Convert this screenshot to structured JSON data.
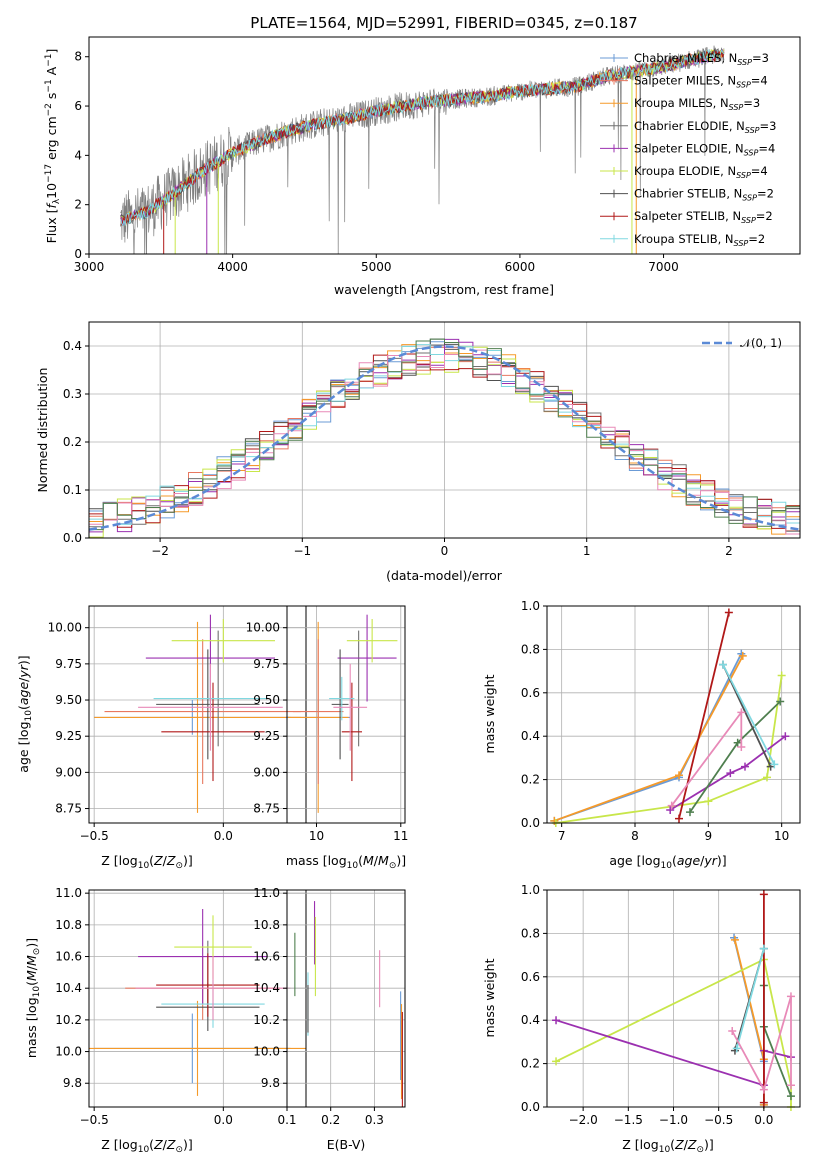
{
  "colors": {
    "Chabrier MILES": "#6b9bd6",
    "Salpeter MILES": "#e87860",
    "Kroupa MILES": "#f59a2a",
    "Chabrier ELODIE": "#707070",
    "Salpeter ELODIE": "#9b30b0",
    "Kroupa ELODIE": "#c8e64a",
    "Chabrier STELIB": "#505050",
    "Salpeter STELIB": "#b01818",
    "Kroupa STELIB": "#80d8e0",
    "normal": "#5b8ad6",
    "pink": "#e88ab8",
    "green": "#4f7f4f"
  },
  "chart_data": [
    {
      "id": "spectrum",
      "type": "line",
      "title": "PLATE=1564, MJD=52991, FIBERID=0345, z=0.187",
      "xlabel": "wavelength [Angstrom, rest frame]",
      "ylabel": "Flux [f_λ10^-17 erg cm^-2 s^-1 A^-1]",
      "xlim": [
        3000,
        7950
      ],
      "ylim": [
        0,
        8.8
      ],
      "xticks": [
        3000,
        4000,
        5000,
        6000,
        7000
      ],
      "yticks": [
        0,
        2,
        4,
        6,
        8
      ],
      "grid": false,
      "legend_position": "top-right",
      "continuum": {
        "x": [
          3200,
          3400,
          3600,
          3800,
          4000,
          4200,
          4400,
          4600,
          4800,
          5000,
          5200,
          5400,
          5600,
          5800,
          6000,
          6200,
          6400,
          6600,
          6800,
          7000,
          7200,
          7400
        ],
        "y": [
          1.3,
          1.7,
          2.5,
          3.4,
          4.1,
          4.6,
          5.0,
          5.3,
          5.5,
          5.8,
          6.0,
          6.2,
          6.3,
          6.4,
          6.6,
          6.7,
          6.8,
          7.2,
          7.4,
          7.6,
          7.9,
          8.1
        ]
      },
      "series": [
        {
          "name": "Chabrier MILES",
          "nssp": "3"
        },
        {
          "name": "Salpeter MILES",
          "nssp": "4"
        },
        {
          "name": "Kroupa MILES",
          "nssp": "3"
        },
        {
          "name": "Chabrier ELODIE",
          "nssp": "3"
        },
        {
          "name": "Salpeter ELODIE",
          "nssp": "4"
        },
        {
          "name": "Kroupa ELODIE",
          "nssp": "4"
        },
        {
          "name": "Chabrier STELIB",
          "nssp": "2"
        },
        {
          "name": "Salpeter STELIB",
          "nssp": "2"
        },
        {
          "name": "Kroupa STELIB",
          "nssp": "2"
        }
      ]
    },
    {
      "id": "residuals",
      "type": "histogram",
      "xlabel": "(data-model)/error",
      "ylabel": "Normed distribution",
      "xlim": [
        -2.5,
        2.5
      ],
      "ylim": [
        0,
        0.45
      ],
      "xticks": [
        -2,
        -1,
        0,
        1,
        2
      ],
      "yticks": [
        0.0,
        0.1,
        0.2,
        0.3,
        0.4
      ],
      "grid": true,
      "legend_position": "top-right",
      "legend": "𝒩(0, 1)",
      "bin_width": 0.1,
      "bin_start": -2.5
    },
    {
      "id": "age_vs_Z",
      "type": "errorbar",
      "xlabel": "Z [log10(Z/Z⊙)]",
      "ylabel": "age  [log10(age/yr)]",
      "xlim": [
        -0.52,
        0.32
      ],
      "ylim": [
        8.65,
        10.15
      ],
      "xticks": [
        -0.5,
        0.0
      ],
      "yticks": [
        8.75,
        9.0,
        9.25,
        9.5,
        9.75,
        10.0
      ],
      "grid": true,
      "points": [
        {
          "series": "Chabrier MILES",
          "x": -0.12,
          "xerr": 0.38,
          "y": 9.38,
          "yerr": 0.12
        },
        {
          "series": "Kroupa MILES",
          "x": -0.1,
          "xerr": 0.4,
          "y": 9.38,
          "yerr": 0.66
        },
        {
          "series": "Salpeter MILES",
          "x": -0.08,
          "xerr": 0.38,
          "y": 9.42,
          "yerr": 0.5
        },
        {
          "series": "Chabrier ELODIE",
          "x": -0.02,
          "xerr": 0.0,
          "y": 9.58,
          "yerr": 0.4
        },
        {
          "series": "Salpeter ELODIE",
          "x": -0.05,
          "xerr": 0.25,
          "y": 9.79,
          "yerr": 0.3
        },
        {
          "series": "Kroupa ELODIE",
          "x": 0.0,
          "xerr": 0.2,
          "y": 9.91,
          "yerr": 0.15
        },
        {
          "series": "Chabrier STELIB",
          "x": -0.06,
          "xerr": 0.2,
          "y": 9.47,
          "yerr": 0.38
        },
        {
          "series": "Salpeter STELIB",
          "x": -0.04,
          "xerr": 0.2,
          "y": 9.28,
          "yerr": 0.34
        },
        {
          "series": "Kroupa STELIB",
          "x": -0.05,
          "xerr": 0.22,
          "y": 9.51,
          "yerr": 0.15
        },
        {
          "series": "pink",
          "x": -0.05,
          "xerr": 0.28,
          "y": 9.45,
          "yerr": 0.3
        }
      ]
    },
    {
      "id": "age_vs_mass",
      "type": "errorbar",
      "xlabel": "mass [log10(M/M⊙)]",
      "ylabel": "",
      "xlim": [
        9.65,
        11.05
      ],
      "ylim": [
        8.65,
        10.15
      ],
      "xticks": [
        10,
        11
      ],
      "yticks": [
        8.75,
        9.0,
        9.25,
        9.5,
        9.75,
        10.0
      ],
      "grid": true,
      "points": [
        {
          "series": "Chabrier MILES",
          "x": 10.02,
          "xerr": 0.38,
          "y": 9.38,
          "yerr": 0.12
        },
        {
          "series": "Kroupa MILES",
          "x": 10.02,
          "xerr": 0.36,
          "y": 9.38,
          "yerr": 0.66
        },
        {
          "series": "Salpeter MILES",
          "x": 10.02,
          "xerr": 0.3,
          "y": 9.42,
          "yerr": 0.5
        },
        {
          "series": "Chabrier ELODIE",
          "x": 10.5,
          "xerr": 0.0,
          "y": 9.58,
          "yerr": 0.4
        },
        {
          "series": "Salpeter ELODIE",
          "x": 10.6,
          "xerr": 0.35,
          "y": 9.79,
          "yerr": 0.3
        },
        {
          "series": "Kroupa ELODIE",
          "x": 10.66,
          "xerr": 0.3,
          "y": 9.91,
          "yerr": 0.15
        },
        {
          "series": "Chabrier STELIB",
          "x": 10.28,
          "xerr": 0.1,
          "y": 9.47,
          "yerr": 0.38
        },
        {
          "series": "Salpeter STELIB",
          "x": 10.42,
          "xerr": 0.12,
          "y": 9.28,
          "yerr": 0.34
        },
        {
          "series": "Kroupa STELIB",
          "x": 10.3,
          "xerr": 0.15,
          "y": 9.51,
          "yerr": 0.15
        },
        {
          "series": "pink",
          "x": 10.4,
          "xerr": 0.2,
          "y": 9.45,
          "yerr": 0.3
        }
      ]
    },
    {
      "id": "weight_vs_age",
      "type": "line",
      "xlabel": "age  [log10(age/yr)]",
      "ylabel": "mass weight",
      "xlim": [
        6.8,
        10.25
      ],
      "ylim": [
        0,
        1.0
      ],
      "xticks": [
        7,
        8,
        9,
        10
      ],
      "yticks": [
        0.0,
        0.2,
        0.4,
        0.6,
        0.8,
        1.0
      ],
      "grid": true,
      "series": [
        {
          "series": "Chabrier MILES",
          "x": [
            6.9,
            8.6,
            9.45
          ],
          "y": [
            0.01,
            0.21,
            0.78
          ]
        },
        {
          "series": "Kroupa MILES",
          "x": [
            6.9,
            8.6,
            9.47
          ],
          "y": [
            0.01,
            0.22,
            0.77
          ]
        },
        {
          "series": "Kroupa ELODIE",
          "x": [
            6.92,
            9.0,
            9.8,
            10.0
          ],
          "y": [
            0.0,
            0.1,
            0.21,
            0.68
          ]
        },
        {
          "series": "Salpeter ELODIE",
          "x": [
            8.48,
            9.3,
            9.5,
            10.05
          ],
          "y": [
            0.06,
            0.23,
            0.26,
            0.4
          ]
        },
        {
          "series": "green",
          "x": [
            8.75,
            9.4,
            9.98
          ],
          "y": [
            0.05,
            0.37,
            0.56
          ]
        },
        {
          "series": "Salpeter STELIB",
          "x": [
            8.6,
            9.28
          ],
          "y": [
            0.02,
            0.97
          ]
        },
        {
          "series": "Chabrier STELIB",
          "x": [
            9.2,
            9.85
          ],
          "y": [
            0.73,
            0.26
          ]
        },
        {
          "series": "Kroupa STELIB",
          "x": [
            9.2,
            9.9
          ],
          "y": [
            0.73,
            0.27
          ]
        },
        {
          "series": "pink",
          "x": [
            8.5,
            9.45,
            9.45
          ],
          "y": [
            0.08,
            0.51,
            0.35
          ]
        }
      ]
    },
    {
      "id": "mass_vs_Z",
      "type": "errorbar",
      "xlabel": "Z [log10(Z/Z⊙)]",
      "ylabel": "mass [log10(M/M⊙)]",
      "xlim": [
        -0.52,
        0.32
      ],
      "ylim": [
        9.65,
        11.02
      ],
      "xticks": [
        -0.5,
        0.0
      ],
      "yticks": [
        9.8,
        10.0,
        10.2,
        10.4,
        10.6,
        10.8,
        11.0
      ],
      "grid": true,
      "points": [
        {
          "series": "Chabrier MILES",
          "x": -0.12,
          "xerr": 0.38,
          "y": 10.02,
          "yerr": 0.22
        },
        {
          "series": "Kroupa MILES",
          "x": -0.1,
          "xerr": 0.42,
          "y": 10.02,
          "yerr": 0.3
        },
        {
          "series": "Salpeter MILES",
          "x": -0.08,
          "xerr": 0.3,
          "y": 10.4,
          "yerr": 0.2
        },
        {
          "series": "Chabrier ELODIE",
          "x": -0.06,
          "xerr": 0.0,
          "y": 10.5,
          "yerr": 0.2
        },
        {
          "series": "Salpeter ELODIE",
          "x": -0.08,
          "xerr": 0.25,
          "y": 10.6,
          "yerr": 0.3
        },
        {
          "series": "Kroupa ELODIE",
          "x": -0.04,
          "xerr": 0.15,
          "y": 10.66,
          "yerr": 0.2
        },
        {
          "series": "Chabrier STELIB",
          "x": -0.06,
          "xerr": 0.2,
          "y": 10.28,
          "yerr": 0.15
        },
        {
          "series": "Salpeter STELIB",
          "x": -0.06,
          "xerr": 0.2,
          "y": 10.42,
          "yerr": 0.2
        },
        {
          "series": "Kroupa STELIB",
          "x": -0.04,
          "xerr": 0.2,
          "y": 10.3,
          "yerr": 0.15
        },
        {
          "series": "pink",
          "x": -0.04,
          "xerr": 0.3,
          "y": 10.4,
          "yerr": 0.2
        }
      ]
    },
    {
      "id": "mass_vs_EBV",
      "type": "errorbar",
      "xlabel": "E(B-V)",
      "ylabel": "",
      "xlim": [
        0.1,
        0.37
      ],
      "ylim": [
        9.65,
        11.02
      ],
      "xticks": [
        0.1,
        0.2,
        0.3
      ],
      "yticks": [
        9.8,
        10.0,
        10.2,
        10.4,
        10.6,
        10.8,
        11.0
      ],
      "grid": true,
      "points": [
        {
          "series": "green",
          "x": 0.118,
          "xerr": 0.0,
          "y": 10.55,
          "yerr": 0.2
        },
        {
          "series": "Kroupa STELIB",
          "x": 0.148,
          "xerr": 0.0,
          "y": 10.3,
          "yerr": 0.2
        },
        {
          "series": "Chabrier STELIB",
          "x": 0.148,
          "xerr": 0.0,
          "y": 10.27,
          "yerr": 0.15
        },
        {
          "series": "Salpeter ELODIE",
          "x": 0.163,
          "xerr": 0.0,
          "y": 10.75,
          "yerr": 0.2
        },
        {
          "series": "Kroupa ELODIE",
          "x": 0.165,
          "xerr": 0.0,
          "y": 10.6,
          "yerr": 0.25
        },
        {
          "series": "pink",
          "x": 0.312,
          "xerr": 0.0,
          "y": 10.46,
          "yerr": 0.18
        },
        {
          "series": "Chabrier MILES",
          "x": 0.36,
          "xerr": 0.0,
          "y": 10.1,
          "yerr": 0.28
        },
        {
          "series": "Kroupa MILES",
          "x": 0.362,
          "xerr": 0.0,
          "y": 10.0,
          "yerr": 0.3
        },
        {
          "series": "Salpeter STELIB",
          "x": 0.364,
          "xerr": 0.0,
          "y": 9.95,
          "yerr": 0.3
        }
      ]
    },
    {
      "id": "weight_vs_Z",
      "type": "line",
      "xlabel": "Z [log10(Z/Z⊙)]",
      "ylabel": "mass weight",
      "xlim": [
        -2.4,
        0.4
      ],
      "ylim": [
        0,
        1.0
      ],
      "xticks": [
        -2.0,
        -1.5,
        -1.0,
        -0.5,
        0.0
      ],
      "yticks": [
        0.0,
        0.2,
        0.4,
        0.6,
        0.8,
        1.0
      ],
      "grid": true,
      "series": [
        {
          "series": "Chabrier MILES",
          "x": [
            -0.33,
            0.0,
            0.0
          ],
          "y": [
            0.78,
            0.21,
            0.01
          ]
        },
        {
          "series": "Kroupa MILES",
          "x": [
            -0.32,
            0.0,
            0.0
          ],
          "y": [
            0.77,
            0.22,
            0.01
          ]
        },
        {
          "series": "Kroupa ELODIE",
          "x": [
            -2.3,
            0.0,
            0.3,
            0.3
          ],
          "y": [
            0.21,
            0.68,
            0.1,
            0.0
          ]
        },
        {
          "series": "Salpeter ELODIE",
          "x": [
            -2.3,
            0.0,
            0.0,
            0.3
          ],
          "y": [
            0.4,
            0.1,
            0.26,
            0.23
          ]
        },
        {
          "series": "green",
          "x": [
            0.0,
            0.0,
            0.3
          ],
          "y": [
            0.56,
            0.37,
            0.05
          ]
        },
        {
          "series": "Salpeter STELIB",
          "x": [
            0.0,
            0.0
          ],
          "y": [
            0.98,
            0.02
          ]
        },
        {
          "series": "Chabrier STELIB",
          "x": [
            -0.32,
            0.0
          ],
          "y": [
            0.26,
            0.73
          ]
        },
        {
          "series": "Kroupa STELIB",
          "x": [
            -0.3,
            0.0
          ],
          "y": [
            0.27,
            0.73
          ]
        },
        {
          "series": "pink",
          "x": [
            -0.35,
            0.0,
            0.3,
            0.3
          ],
          "y": [
            0.35,
            0.08,
            0.51,
            0.1
          ]
        }
      ]
    }
  ]
}
